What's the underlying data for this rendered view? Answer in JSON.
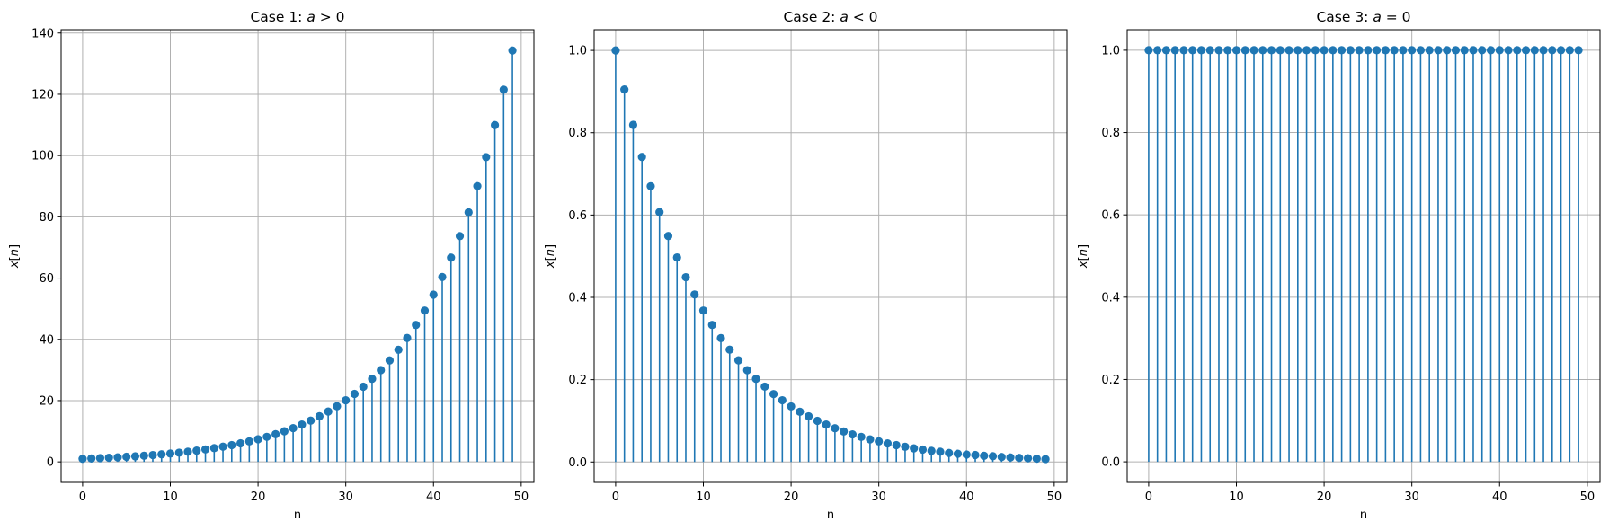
{
  "colors": {
    "series": "#1f77b4",
    "grid": "#b0b0b0",
    "frame": "#000000"
  },
  "chart_data": [
    {
      "type": "stem",
      "title_prefix": "Case 1: ",
      "title_math": "a > 0",
      "xlabel": "n",
      "ylabel_math": "x[n]",
      "grid": true,
      "xlim": [
        -2.45,
        51.45
      ],
      "ylim": [
        -6.7,
        141.1
      ],
      "xticks": [
        0,
        10,
        20,
        30,
        40,
        50
      ],
      "xtick_labels": [
        "0",
        "10",
        "20",
        "30",
        "40",
        "50"
      ],
      "yticks": [
        0,
        20,
        40,
        60,
        80,
        100,
        120,
        140
      ],
      "ytick_labels": [
        "0",
        "20",
        "40",
        "60",
        "80",
        "100",
        "120",
        "140"
      ],
      "x": [
        0,
        1,
        2,
        3,
        4,
        5,
        6,
        7,
        8,
        9,
        10,
        11,
        12,
        13,
        14,
        15,
        16,
        17,
        18,
        19,
        20,
        21,
        22,
        23,
        24,
        25,
        26,
        27,
        28,
        29,
        30,
        31,
        32,
        33,
        34,
        35,
        36,
        37,
        38,
        39,
        40,
        41,
        42,
        43,
        44,
        45,
        46,
        47,
        48,
        49
      ],
      "values": [
        1.0,
        1.11,
        1.22,
        1.35,
        1.49,
        1.65,
        1.82,
        2.01,
        2.23,
        2.46,
        2.72,
        3.0,
        3.32,
        3.67,
        4.06,
        4.48,
        4.95,
        5.47,
        6.05,
        6.69,
        7.39,
        8.17,
        9.03,
        9.97,
        11.02,
        12.18,
        13.46,
        14.88,
        16.44,
        18.17,
        20.09,
        22.2,
        24.53,
        27.11,
        29.96,
        33.12,
        36.6,
        40.45,
        44.7,
        49.4,
        54.6,
        60.34,
        66.69,
        73.7,
        81.45,
        90.02,
        99.48,
        109.95,
        121.51,
        134.29
      ]
    },
    {
      "type": "stem",
      "title_prefix": "Case 2: ",
      "title_math": "a < 0",
      "xlabel": "n",
      "ylabel_math": "x[n]",
      "grid": true,
      "xlim": [
        -2.45,
        51.45
      ],
      "ylim": [
        -0.0496,
        1.0504
      ],
      "xticks": [
        0,
        10,
        20,
        30,
        40,
        50
      ],
      "xtick_labels": [
        "0",
        "10",
        "20",
        "30",
        "40",
        "50"
      ],
      "yticks": [
        0.0,
        0.2,
        0.4,
        0.6,
        0.8,
        1.0
      ],
      "ytick_labels": [
        "0.0",
        "0.2",
        "0.4",
        "0.6",
        "0.8",
        "1.0"
      ],
      "x": [
        0,
        1,
        2,
        3,
        4,
        5,
        6,
        7,
        8,
        9,
        10,
        11,
        12,
        13,
        14,
        15,
        16,
        17,
        18,
        19,
        20,
        21,
        22,
        23,
        24,
        25,
        26,
        27,
        28,
        29,
        30,
        31,
        32,
        33,
        34,
        35,
        36,
        37,
        38,
        39,
        40,
        41,
        42,
        43,
        44,
        45,
        46,
        47,
        48,
        49
      ],
      "values": [
        1.0,
        0.905,
        0.819,
        0.741,
        0.67,
        0.607,
        0.549,
        0.497,
        0.449,
        0.407,
        0.368,
        0.333,
        0.301,
        0.273,
        0.247,
        0.223,
        0.202,
        0.183,
        0.165,
        0.15,
        0.135,
        0.122,
        0.111,
        0.1,
        0.091,
        0.082,
        0.074,
        0.067,
        0.061,
        0.055,
        0.05,
        0.045,
        0.041,
        0.037,
        0.033,
        0.03,
        0.027,
        0.025,
        0.022,
        0.02,
        0.018,
        0.017,
        0.015,
        0.014,
        0.012,
        0.011,
        0.01,
        0.009,
        0.008,
        0.007
      ]
    },
    {
      "type": "stem",
      "title_prefix": "Case 3: ",
      "title_math": "a = 0",
      "xlabel": "n",
      "ylabel_math": "x[n]",
      "grid": true,
      "xlim": [
        -2.45,
        51.45
      ],
      "ylim": [
        -0.05,
        1.05
      ],
      "xticks": [
        0,
        10,
        20,
        30,
        40,
        50
      ],
      "xtick_labels": [
        "0",
        "10",
        "20",
        "30",
        "40",
        "50"
      ],
      "yticks": [
        0.0,
        0.2,
        0.4,
        0.6,
        0.8,
        1.0
      ],
      "ytick_labels": [
        "0.0",
        "0.2",
        "0.4",
        "0.6",
        "0.8",
        "1.0"
      ],
      "x": [
        0,
        1,
        2,
        3,
        4,
        5,
        6,
        7,
        8,
        9,
        10,
        11,
        12,
        13,
        14,
        15,
        16,
        17,
        18,
        19,
        20,
        21,
        22,
        23,
        24,
        25,
        26,
        27,
        28,
        29,
        30,
        31,
        32,
        33,
        34,
        35,
        36,
        37,
        38,
        39,
        40,
        41,
        42,
        43,
        44,
        45,
        46,
        47,
        48,
        49
      ],
      "values": [
        1,
        1,
        1,
        1,
        1,
        1,
        1,
        1,
        1,
        1,
        1,
        1,
        1,
        1,
        1,
        1,
        1,
        1,
        1,
        1,
        1,
        1,
        1,
        1,
        1,
        1,
        1,
        1,
        1,
        1,
        1,
        1,
        1,
        1,
        1,
        1,
        1,
        1,
        1,
        1,
        1,
        1,
        1,
        1,
        1,
        1,
        1,
        1,
        1,
        1
      ]
    }
  ]
}
